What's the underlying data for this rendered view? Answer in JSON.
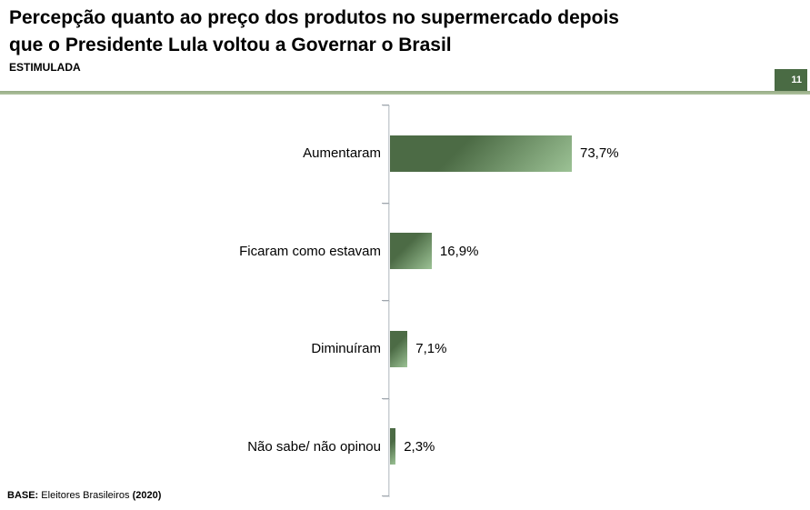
{
  "header": {
    "title_lines": [
      "Percepção quanto ao preço dos produtos no supermercado depois",
      "que o Presidente Lula voltou a Governar o Brasil"
    ],
    "subtitle": "ESTIMULADA",
    "page_number": "11"
  },
  "chart_data": {
    "type": "bar",
    "orientation": "horizontal",
    "title": "Percepção quanto ao preço dos produtos no supermercado depois que o Presidente Lula voltou a Governar o Brasil",
    "subtitle": "ESTIMULADA",
    "categories": [
      "Aumentaram",
      "Ficaram como estavam",
      "Diminuíram",
      "Não sabe/ não opinou"
    ],
    "values": [
      73.7,
      16.9,
      7.1,
      2.3
    ],
    "value_labels": [
      "73,7%",
      "16,9%",
      "7,1%",
      "2,3%"
    ],
    "xlabel": "",
    "ylabel": "",
    "xlim": [
      0,
      100
    ],
    "grid": false,
    "legend": false,
    "data_labels_position": "end-of-bar",
    "bar_color_dark": "#4c6b45",
    "bar_color_light": "#9cc295"
  },
  "footer": {
    "base_label": "BASE:",
    "base_text": "Eleitores Brasileiros",
    "base_year": "(2020)"
  },
  "theme": {
    "badge_green": "#4a6b44",
    "divider_green": "#b0c39f",
    "divider_green_dark": "#96ab85",
    "axis_color": "#c9ced3",
    "text_color": "#000000",
    "background": "#ffffff"
  }
}
